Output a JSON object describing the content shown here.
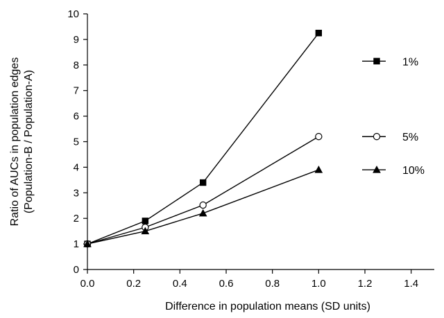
{
  "chart_data": {
    "type": "line",
    "title": "",
    "xlabel": "Difference in population means  (SD units)",
    "ylabel_lines": [
      "Ratio of AUCs in population edges",
      "(Population-B / Population-A)"
    ],
    "xlim": [
      0.0,
      1.5
    ],
    "ylim": [
      0,
      10
    ],
    "x_ticks": [
      0.0,
      0.2,
      0.4,
      0.6,
      0.8,
      1.0,
      1.2,
      1.4
    ],
    "x_tick_labels": [
      "0.0",
      "0.2",
      "0.4",
      "0.6",
      "0.8",
      "1.0",
      "1.2",
      "1.4"
    ],
    "y_ticks": [
      0,
      1,
      2,
      3,
      4,
      5,
      6,
      7,
      8,
      9,
      10
    ],
    "y_tick_labels": [
      "0",
      "1",
      "2",
      "3",
      "4",
      "5",
      "6",
      "7",
      "8",
      "9",
      "10"
    ],
    "grid": false,
    "legend_position": "right",
    "x": [
      0.0,
      0.25,
      0.5,
      1.0
    ],
    "series": [
      {
        "name": "1%",
        "marker": "square-filled",
        "values": [
          1.0,
          1.9,
          3.4,
          9.25
        ]
      },
      {
        "name": "5%",
        "marker": "circle-open",
        "values": [
          1.0,
          1.65,
          2.52,
          5.2
        ]
      },
      {
        "name": "10%",
        "marker": "triangle-filled",
        "values": [
          1.0,
          1.5,
          2.2,
          3.9
        ]
      }
    ],
    "colors": {
      "line": "#000000",
      "marker_fill": "#000000",
      "open_fill": "#ffffff"
    }
  }
}
